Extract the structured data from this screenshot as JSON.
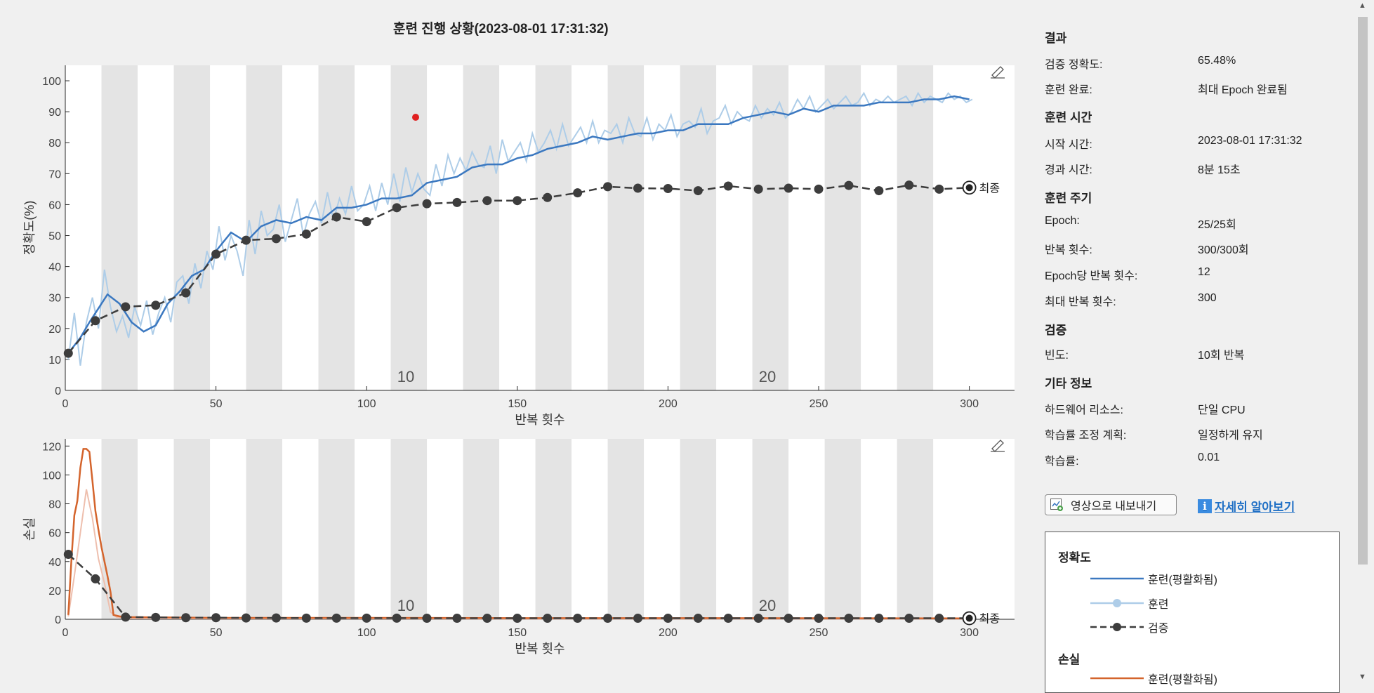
{
  "window": {
    "title": "훈련 진행 상황(2023-08-01 17:31:32)"
  },
  "colors": {
    "train_smoothed": "#3b78c0",
    "train_raw": "#aecde8",
    "validation": "#3d3d3d",
    "loss_smoothed": "#d4642c",
    "loss_raw": "#eebfae",
    "epoch_band": "#e4e4e4"
  },
  "chart_data": [
    {
      "type": "line",
      "title": "",
      "xlabel": "반복 횟수",
      "ylabel": "정확도(%)",
      "xlim": [
        0,
        315
      ],
      "ylim": [
        0,
        105
      ],
      "x_ticks": [
        0,
        50,
        100,
        150,
        200,
        250,
        300
      ],
      "y_ticks": [
        0,
        10,
        20,
        30,
        40,
        50,
        60,
        70,
        80,
        90,
        100
      ],
      "epoch_labels": [
        {
          "epoch": "10",
          "x": 113
        },
        {
          "epoch": "20",
          "x": 233
        }
      ],
      "final_label": "최종",
      "series": [
        {
          "name": "훈련(평활화됨)",
          "x": [
            1,
            5,
            8,
            10,
            14,
            18,
            22,
            26,
            30,
            34,
            38,
            42,
            46,
            50,
            55,
            60,
            65,
            70,
            75,
            80,
            85,
            90,
            95,
            100,
            105,
            110,
            115,
            120,
            125,
            130,
            135,
            140,
            145,
            150,
            155,
            160,
            165,
            170,
            175,
            180,
            185,
            190,
            195,
            200,
            205,
            210,
            215,
            220,
            225,
            230,
            235,
            240,
            245,
            250,
            255,
            260,
            265,
            270,
            275,
            280,
            285,
            290,
            295,
            300
          ],
          "y": [
            12,
            17,
            22,
            25,
            31,
            28,
            22,
            19,
            21,
            28,
            32,
            37,
            39,
            45,
            51,
            48,
            53,
            55,
            54,
            56,
            55,
            59,
            59,
            60,
            62,
            62,
            63,
            67,
            68,
            69,
            72,
            73,
            73,
            75,
            76,
            78,
            79,
            80,
            82,
            81,
            82,
            83,
            83,
            84,
            84,
            86,
            86,
            86,
            88,
            89,
            90,
            89,
            91,
            90,
            92,
            92,
            92,
            93,
            93,
            93,
            94,
            94,
            95,
            94
          ]
        },
        {
          "name": "훈련",
          "x": [
            1,
            3,
            5,
            7,
            9,
            11,
            13,
            15,
            17,
            19,
            21,
            23,
            25,
            27,
            29,
            31,
            33,
            35,
            37,
            39,
            41,
            43,
            45,
            47,
            49,
            51,
            53,
            55,
            57,
            59,
            61,
            63,
            65,
            67,
            69,
            71,
            73,
            75,
            77,
            79,
            81,
            83,
            85,
            87,
            89,
            91,
            93,
            95,
            97,
            99,
            101,
            103,
            105,
            107,
            109,
            111,
            113,
            115,
            117,
            119,
            121,
            123,
            125,
            127,
            129,
            131,
            133,
            135,
            137,
            139,
            141,
            143,
            145,
            147,
            149,
            151,
            153,
            155,
            157,
            159,
            161,
            163,
            165,
            167,
            169,
            171,
            173,
            175,
            177,
            179,
            181,
            183,
            185,
            187,
            189,
            191,
            193,
            195,
            197,
            199,
            201,
            203,
            205,
            207,
            209,
            211,
            213,
            215,
            217,
            219,
            221,
            223,
            225,
            227,
            229,
            231,
            233,
            235,
            237,
            239,
            241,
            243,
            245,
            247,
            249,
            251,
            253,
            255,
            257,
            259,
            261,
            263,
            265,
            267,
            269,
            271,
            273,
            275,
            277,
            279,
            281,
            283,
            285,
            287,
            289,
            291,
            293,
            295,
            297,
            299,
            301
          ],
          "y": [
            10,
            25,
            8,
            22,
            30,
            20,
            39,
            27,
            19,
            24,
            17,
            27,
            21,
            29,
            18,
            25,
            30,
            22,
            35,
            37,
            28,
            41,
            33,
            45,
            39,
            53,
            42,
            50,
            45,
            37,
            55,
            44,
            58,
            50,
            52,
            60,
            48,
            55,
            62,
            50,
            57,
            61,
            54,
            64,
            55,
            62,
            57,
            66,
            58,
            60,
            66,
            58,
            67,
            60,
            70,
            61,
            72,
            64,
            70,
            65,
            63,
            73,
            66,
            76,
            70,
            75,
            71,
            77,
            73,
            72,
            79,
            70,
            81,
            74,
            77,
            80,
            74,
            83,
            77,
            80,
            84,
            78,
            86,
            79,
            82,
            85,
            80,
            87,
            80,
            84,
            83,
            86,
            80,
            88,
            83,
            82,
            88,
            81,
            86,
            84,
            89,
            82,
            86,
            87,
            85,
            91,
            83,
            87,
            88,
            92,
            86,
            90,
            88,
            87,
            92,
            88,
            91,
            89,
            93,
            88,
            90,
            94,
            91,
            95,
            90,
            92,
            94,
            91,
            93,
            95,
            92,
            93,
            96,
            92,
            94,
            93,
            95,
            93,
            94,
            95,
            92,
            96,
            93,
            95,
            94,
            93,
            96,
            94,
            95,
            93,
            94
          ]
        },
        {
          "name": "검증",
          "x": [
            1,
            10,
            20,
            30,
            40,
            50,
            60,
            70,
            80,
            90,
            100,
            110,
            120,
            130,
            140,
            150,
            160,
            170,
            180,
            190,
            200,
            210,
            220,
            230,
            240,
            250,
            260,
            270,
            280,
            290,
            300
          ],
          "y": [
            12,
            22.5,
            27,
            27.5,
            31.5,
            44,
            48.5,
            49,
            50.5,
            56,
            54.5,
            59,
            60.3,
            60.7,
            61.3,
            61.3,
            62.3,
            63.8,
            65.8,
            65.3,
            65.2,
            64.5,
            66,
            65,
            65.3,
            65,
            66.2,
            64.5,
            66.3,
            65,
            65.48
          ]
        }
      ]
    },
    {
      "type": "line",
      "title": "",
      "xlabel": "반복 횟수",
      "ylabel": "손실",
      "xlim": [
        0,
        315
      ],
      "ylim": [
        0,
        125
      ],
      "x_ticks": [
        0,
        50,
        100,
        150,
        200,
        250,
        300
      ],
      "y_ticks": [
        0,
        20,
        40,
        60,
        80,
        100,
        120
      ],
      "epoch_labels": [
        {
          "epoch": "10",
          "x": 113
        },
        {
          "epoch": "20",
          "x": 233
        }
      ],
      "final_label": "최종",
      "series": [
        {
          "name": "훈련(평활화됨)",
          "x": [
            1,
            2,
            3,
            4,
            5,
            6,
            7,
            8,
            9,
            10,
            11,
            12,
            13,
            14,
            15,
            16,
            17,
            18,
            20,
            50,
            100,
            150,
            200,
            250,
            300
          ],
          "y": [
            3,
            40,
            72,
            82,
            105,
            118,
            118,
            116,
            96,
            75,
            62,
            50,
            40,
            30,
            19,
            3,
            2.5,
            2,
            1.5,
            1,
            1,
            0.8,
            0.8,
            0.7,
            0.6
          ]
        },
        {
          "name": "훈련",
          "x": [
            1,
            3,
            5,
            7,
            9,
            11,
            13,
            15,
            17,
            19,
            21,
            30,
            50,
            100,
            150,
            200,
            250,
            300
          ],
          "y": [
            2,
            30,
            60,
            90,
            70,
            42,
            25,
            5,
            1.5,
            1,
            0.6,
            0.5,
            0.4,
            0.4,
            0.3,
            0.3,
            0.3,
            0.3
          ]
        },
        {
          "name": "검증",
          "x": [
            1,
            10,
            20,
            30,
            40,
            50,
            60,
            70,
            80,
            90,
            100,
            110,
            120,
            130,
            140,
            150,
            160,
            170,
            180,
            190,
            200,
            210,
            220,
            230,
            240,
            250,
            260,
            270,
            280,
            290,
            300
          ],
          "y": [
            45,
            28,
            1.5,
            1.3,
            1.1,
            1.1,
            0.9,
            0.9,
            0.8,
            0.8,
            0.8,
            0.8,
            0.7,
            0.7,
            0.7,
            0.7,
            0.7,
            0.7,
            0.7,
            0.7,
            0.7,
            0.7,
            0.7,
            0.7,
            0.7,
            0.7,
            0.7,
            0.7,
            0.7,
            0.7,
            0.7
          ]
        }
      ]
    }
  ],
  "panel": {
    "results": {
      "heading": "결과",
      "val_acc_label": "검증 정확도:",
      "val_acc": "65.48%",
      "done_label": "훈련 완료:",
      "done": "최대 Epoch 완료됨"
    },
    "time": {
      "heading": "훈련 시간",
      "start_label": "시작 시간:",
      "start": "2023-08-01 17:31:32",
      "elapsed_label": "경과 시간:",
      "elapsed": "8분 15초"
    },
    "cycle": {
      "heading": "훈련 주기",
      "epoch_label": "Epoch:",
      "epoch": "25/25회",
      "iter_label": "반복 횟수:",
      "iter": "300/300회",
      "per_epoch_label": "Epoch당 반복 횟수:",
      "per_epoch": "12",
      "max_iter_label": "최대 반복 횟수:",
      "max_iter": "300"
    },
    "validation": {
      "heading": "검증",
      "freq_label": "빈도:",
      "freq": "10회 반복"
    },
    "other": {
      "heading": "기타 정보",
      "hw_label": "하드웨어 리소스:",
      "hw": "단일 CPU",
      "sched_label": "학습률 조정 계획:",
      "sched": "일정하게 유지",
      "lr_label": "학습률:",
      "lr": "0.01"
    },
    "export_button": "영상으로 내보내기",
    "learn_more": "자세히 알아보기",
    "legend": {
      "acc_heading": "정확도",
      "acc_smoothed": "훈련(평활화됨)",
      "acc_train": "훈련",
      "acc_val": "검증",
      "loss_heading": "손실",
      "loss_smoothed": "훈련(평활화됨)"
    }
  }
}
